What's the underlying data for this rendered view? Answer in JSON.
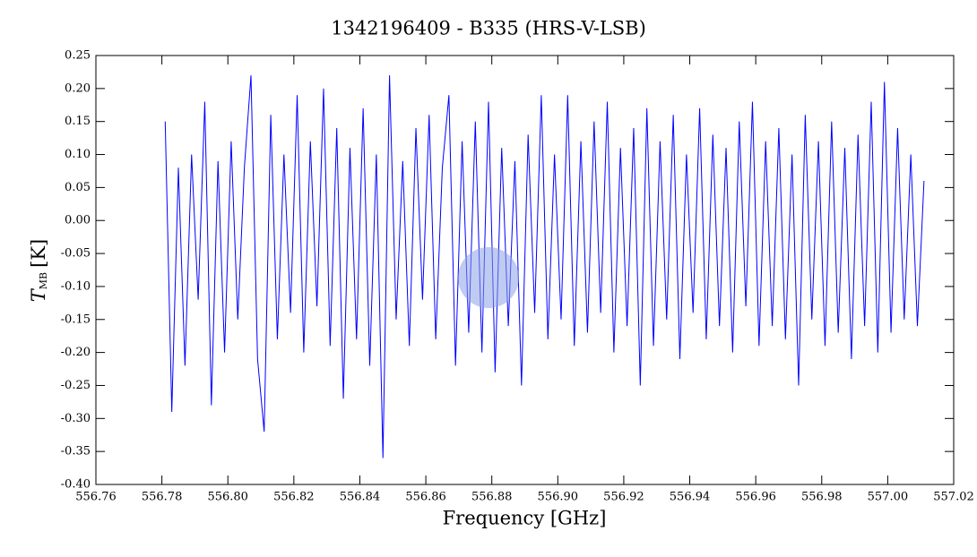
{
  "chart_data": {
    "type": "line",
    "title": "1342196409 - B335 (HRS-V-LSB)",
    "xlabel": "Frequency [GHz]",
    "ylabel": {
      "main": "T",
      "sub": "MB",
      "unit": "[K]"
    },
    "xlim": [
      556.76,
      557.02
    ],
    "xticks": [
      556.76,
      556.78,
      {
        "value": 556.8,
        "label": "556.80"
      },
      556.82,
      556.84,
      556.86,
      556.88,
      {
        "value": 556.9,
        "label": "556.90"
      },
      556.92,
      556.94,
      556.96,
      556.98,
      {
        "value": 557.0,
        "label": "557.00"
      },
      557.02
    ],
    "ylim": [
      -0.4,
      0.25
    ],
    "yticks": [
      {
        "value": -0.4,
        "label": "-0.40"
      },
      -0.35,
      {
        "value": -0.3,
        "label": "-0.30"
      },
      -0.25,
      {
        "value": -0.2,
        "label": "-0.20"
      },
      -0.15,
      {
        "value": -0.1,
        "label": "-0.10"
      },
      -0.05,
      {
        "value": 0,
        "label": "0.00"
      },
      0.05,
      {
        "value": 0.1,
        "label": "0.10"
      },
      0.15,
      {
        "value": 0.2,
        "label": "0.20"
      },
      0.25
    ],
    "x": [
      556.781,
      556.783,
      556.785,
      556.787,
      556.789,
      556.791,
      556.793,
      556.795,
      556.797,
      556.799,
      556.801,
      556.803,
      556.805,
      556.807,
      556.809,
      556.811,
      556.813,
      556.815,
      556.817,
      556.819,
      556.821,
      556.823,
      556.825,
      556.827,
      556.829,
      556.831,
      556.833,
      556.835,
      556.837,
      556.839,
      556.841,
      556.843,
      556.845,
      556.847,
      556.849,
      556.851,
      556.853,
      556.855,
      556.857,
      556.859,
      556.861,
      556.863,
      556.865,
      556.867,
      556.869,
      556.871,
      556.873,
      556.875,
      556.877,
      556.879,
      556.881,
      556.883,
      556.885,
      556.887,
      556.889,
      556.891,
      556.893,
      556.895,
      556.897,
      556.899,
      556.901,
      556.903,
      556.905,
      556.907,
      556.909,
      556.911,
      556.913,
      556.915,
      556.917,
      556.919,
      556.921,
      556.923,
      556.925,
      556.927,
      556.929,
      556.931,
      556.933,
      556.935,
      556.937,
      556.939,
      556.941,
      556.943,
      556.945,
      556.947,
      556.949,
      556.951,
      556.953,
      556.955,
      556.957,
      556.959,
      556.961,
      556.963,
      556.965,
      556.967,
      556.969,
      556.971,
      556.973,
      556.975,
      556.977,
      556.979,
      556.981,
      556.983,
      556.985,
      556.987,
      556.989,
      556.991,
      556.993,
      556.995,
      556.997,
      556.999,
      557.001,
      557.003,
      557.005,
      557.007,
      557.009,
      557.011
    ],
    "series": [
      {
        "color": "#0000ff",
        "values": [
          0.15,
          -0.29,
          0.08,
          -0.22,
          0.1,
          -0.12,
          0.18,
          -0.28,
          0.09,
          -0.2,
          0.12,
          -0.15,
          0.08,
          0.22,
          -0.21,
          -0.32,
          0.16,
          -0.18,
          0.1,
          -0.14,
          0.19,
          -0.2,
          0.12,
          -0.13,
          0.2,
          -0.19,
          0.14,
          -0.27,
          0.11,
          -0.18,
          0.17,
          -0.22,
          0.1,
          -0.36,
          0.22,
          -0.15,
          0.09,
          -0.19,
          0.14,
          -0.12,
          0.16,
          -0.18,
          0.08,
          0.19,
          -0.22,
          0.12,
          -0.17,
          0.15,
          -0.2,
          0.18,
          -0.23,
          0.11,
          -0.16,
          0.09,
          -0.25,
          0.13,
          -0.14,
          0.19,
          -0.18,
          0.1,
          -0.15,
          0.19,
          -0.19,
          0.12,
          -0.17,
          0.15,
          -0.14,
          0.18,
          -0.2,
          0.11,
          -0.16,
          0.14,
          -0.25,
          0.17,
          -0.19,
          0.12,
          -0.15,
          0.16,
          -0.21,
          0.1,
          -0.14,
          0.17,
          -0.18,
          0.13,
          -0.16,
          0.11,
          -0.2,
          0.15,
          -0.13,
          0.18,
          -0.19,
          0.12,
          -0.16,
          0.14,
          -0.18,
          0.1,
          -0.25,
          0.16,
          -0.15,
          0.12,
          -0.19,
          0.15,
          -0.17,
          0.11,
          -0.21,
          0.13,
          -0.16,
          0.18,
          -0.2,
          0.21,
          -0.17,
          0.14,
          -0.15,
          0.1,
          -0.16,
          0.06
        ]
      }
    ]
  }
}
